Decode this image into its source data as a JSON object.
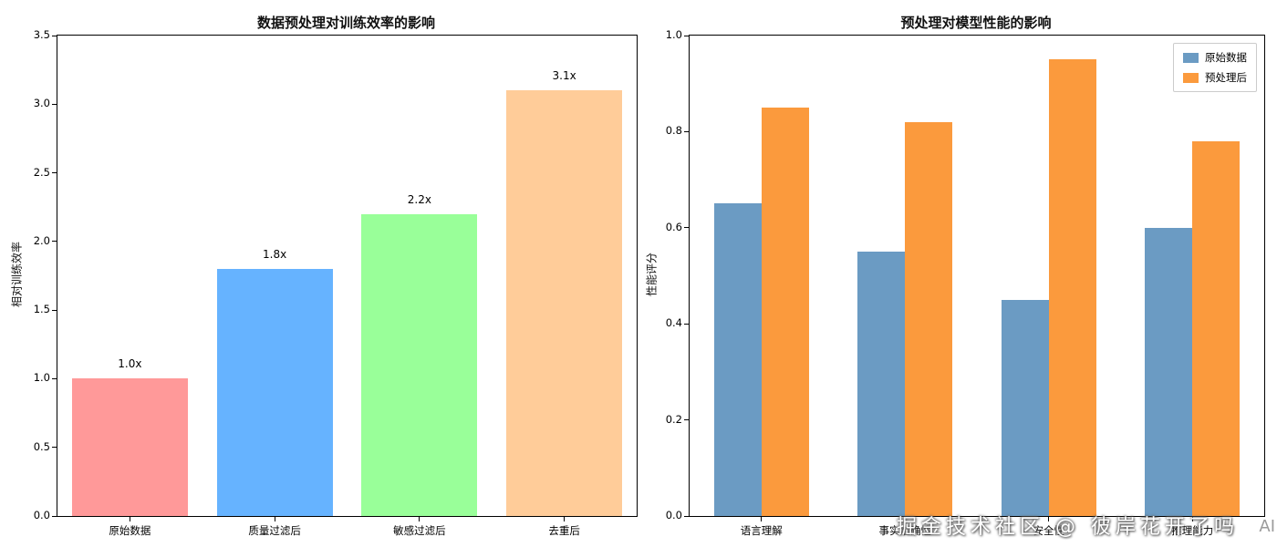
{
  "chart_data": [
    {
      "type": "bar",
      "title": "数据预处理对训练效率的影响",
      "ylabel": "相对训练效率",
      "xlabel": "",
      "categories": [
        "原始数据",
        "质量过滤后",
        "敏感过滤后",
        "去重后"
      ],
      "values": [
        1.0,
        1.8,
        2.2,
        3.1
      ],
      "bar_labels": [
        "1.0x",
        "1.8x",
        "2.2x",
        "3.1x"
      ],
      "bar_colors": [
        "#ff9999",
        "#66b3ff",
        "#99ff99",
        "#ffcc99"
      ],
      "ylim": [
        0,
        3.5
      ],
      "yticks": [
        "0.0",
        "0.5",
        "1.0",
        "1.5",
        "2.0",
        "2.5",
        "3.0",
        "3.5"
      ],
      "grid": false
    },
    {
      "type": "bar",
      "title": "预处理对模型性能的影响",
      "ylabel": "性能评分",
      "xlabel": "",
      "categories": [
        "语言理解",
        "事实准确性",
        "安全性",
        "推理能力"
      ],
      "series": [
        {
          "name": "原始数据",
          "color": "#6b9bc3",
          "values": [
            0.65,
            0.55,
            0.45,
            0.6
          ]
        },
        {
          "name": "预处理后",
          "color": "#fb9a3d",
          "values": [
            0.85,
            0.82,
            0.95,
            0.78
          ]
        }
      ],
      "ylim": [
        0,
        1.0
      ],
      "yticks": [
        "0.0",
        "0.2",
        "0.4",
        "0.6",
        "0.8",
        "1.0"
      ],
      "legend_position": "upper right",
      "grid": false
    }
  ],
  "watermark": {
    "text": "掘金技术社区 @ 彼岸花开了吗",
    "fragment": "AI"
  }
}
